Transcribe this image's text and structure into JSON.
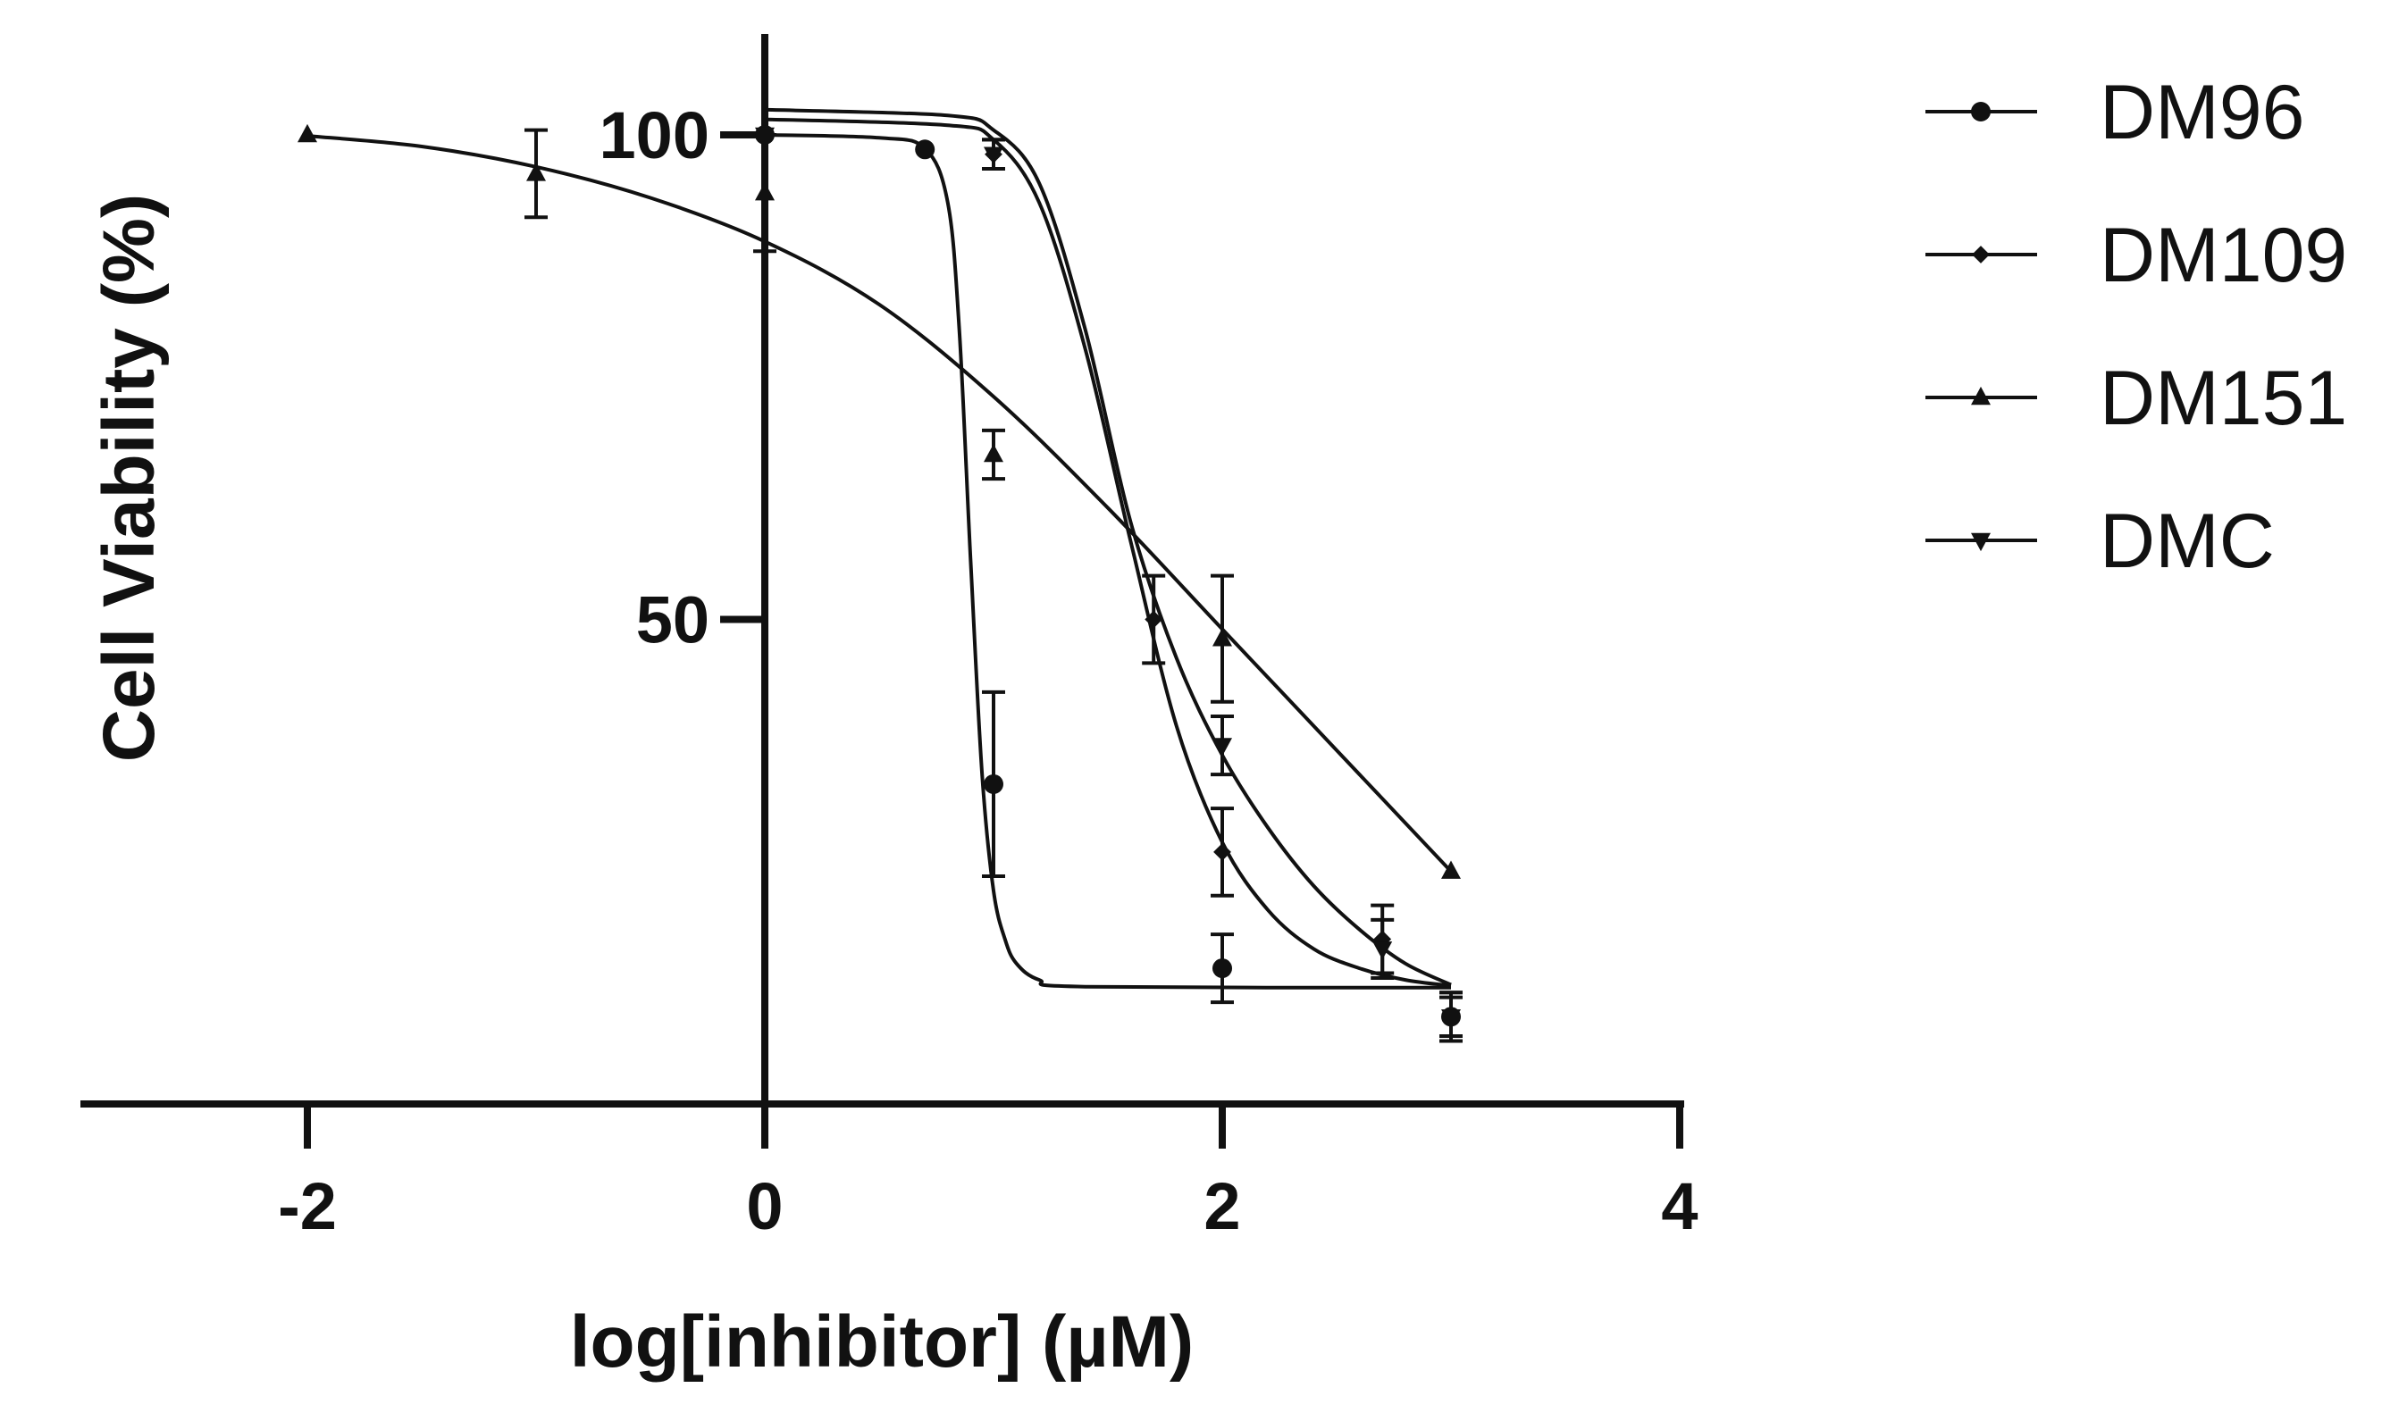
{
  "chart_data": {
    "type": "scatter",
    "xlabel": "log[inhibitor] (µM)",
    "ylabel": "Cell Viability (%)",
    "xlim": [
      -3,
      4
    ],
    "ylim": [
      0,
      110
    ],
    "x_ticks": [
      "-2",
      "0",
      "2",
      "4"
    ],
    "y_ticks": [
      "50",
      "100"
    ],
    "legend_position": "top-right",
    "series": [
      {
        "name": "DM96",
        "marker": "circle",
        "points": [
          {
            "x": 0,
            "y": 100,
            "err": 0
          },
          {
            "x": 0.7,
            "y": 98.5,
            "err": 0
          },
          {
            "x": 1,
            "y": 33,
            "err": 9.5
          },
          {
            "x": 2,
            "y": 14,
            "err": 3.5
          },
          {
            "x": 3,
            "y": 9,
            "err": 2.5
          }
        ],
        "fit": [
          {
            "x": 0,
            "y": 100
          },
          {
            "x": 0.5,
            "y": 99.7
          },
          {
            "x": 0.7,
            "y": 98.6
          },
          {
            "x": 0.8,
            "y": 93
          },
          {
            "x": 0.85,
            "y": 80
          },
          {
            "x": 0.9,
            "y": 56
          },
          {
            "x": 0.95,
            "y": 34
          },
          {
            "x": 1.0,
            "y": 22
          },
          {
            "x": 1.05,
            "y": 17
          },
          {
            "x": 1.1,
            "y": 14.5
          },
          {
            "x": 1.2,
            "y": 12.8
          },
          {
            "x": 1.4,
            "y": 12.1
          },
          {
            "x": 3.0,
            "y": 12
          }
        ]
      },
      {
        "name": "DM109",
        "marker": "diamond",
        "points": [
          {
            "x": 0,
            "y": 100,
            "err": 0
          },
          {
            "x": 1,
            "y": 98,
            "err": 1.5
          },
          {
            "x": 1.7,
            "y": 50,
            "err": 4.5
          },
          {
            "x": 2,
            "y": 26,
            "err": 4.5
          },
          {
            "x": 2.7,
            "y": 17,
            "err": 3.5
          },
          {
            "x": 3,
            "y": 9,
            "err": 2.5
          }
        ],
        "fit": [
          {
            "x": 0,
            "y": 101.6
          },
          {
            "x": 0.8,
            "y": 101
          },
          {
            "x": 1.0,
            "y": 99.5
          },
          {
            "x": 1.2,
            "y": 93
          },
          {
            "x": 1.4,
            "y": 78
          },
          {
            "x": 1.6,
            "y": 58
          },
          {
            "x": 1.8,
            "y": 39
          },
          {
            "x": 2.0,
            "y": 27
          },
          {
            "x": 2.2,
            "y": 20
          },
          {
            "x": 2.4,
            "y": 16
          },
          {
            "x": 2.6,
            "y": 14
          },
          {
            "x": 2.8,
            "y": 12.8
          },
          {
            "x": 3.0,
            "y": 12.2
          }
        ]
      },
      {
        "name": "DM151",
        "marker": "triangle",
        "points": [
          {
            "x": -2,
            "y": 100,
            "err": 0
          },
          {
            "x": -1,
            "y": 96,
            "err": 4.5
          },
          {
            "x": 0,
            "y": 94,
            "err": 6
          },
          {
            "x": 1,
            "y": 67,
            "err": 2.5
          },
          {
            "x": 2,
            "y": 48,
            "err": 6.5
          },
          {
            "x": 3,
            "y": 24,
            "err": 0
          }
        ],
        "fit": [
          {
            "x": -2,
            "y": 99.9
          },
          {
            "x": -1.5,
            "y": 98.8
          },
          {
            "x": -1.0,
            "y": 96.7
          },
          {
            "x": -0.5,
            "y": 93.5
          },
          {
            "x": 0,
            "y": 89
          },
          {
            "x": 0.5,
            "y": 82.5
          },
          {
            "x": 1.0,
            "y": 73
          },
          {
            "x": 1.5,
            "y": 61.5
          },
          {
            "x": 2.0,
            "y": 49
          },
          {
            "x": 2.5,
            "y": 36.5
          },
          {
            "x": 3.0,
            "y": 24
          }
        ]
      },
      {
        "name": "DMC",
        "marker": "inverted-triangle",
        "points": [
          {
            "x": 0,
            "y": 100,
            "err": 0
          },
          {
            "x": 1,
            "y": 98,
            "err": 1.5
          },
          {
            "x": 2,
            "y": 37,
            "err": 3
          },
          {
            "x": 2.7,
            "y": 16,
            "err": 3
          },
          {
            "x": 3,
            "y": 9,
            "err": 2
          }
        ],
        "fit": [
          {
            "x": 0,
            "y": 102.6
          },
          {
            "x": 0.8,
            "y": 102
          },
          {
            "x": 1.0,
            "y": 100.5
          },
          {
            "x": 1.2,
            "y": 95
          },
          {
            "x": 1.4,
            "y": 80
          },
          {
            "x": 1.6,
            "y": 60
          },
          {
            "x": 1.8,
            "y": 46
          },
          {
            "x": 2.0,
            "y": 36
          },
          {
            "x": 2.2,
            "y": 28.5
          },
          {
            "x": 2.4,
            "y": 22.5
          },
          {
            "x": 2.6,
            "y": 18
          },
          {
            "x": 2.8,
            "y": 14.5
          },
          {
            "x": 3.0,
            "y": 12.3
          }
        ]
      }
    ]
  }
}
